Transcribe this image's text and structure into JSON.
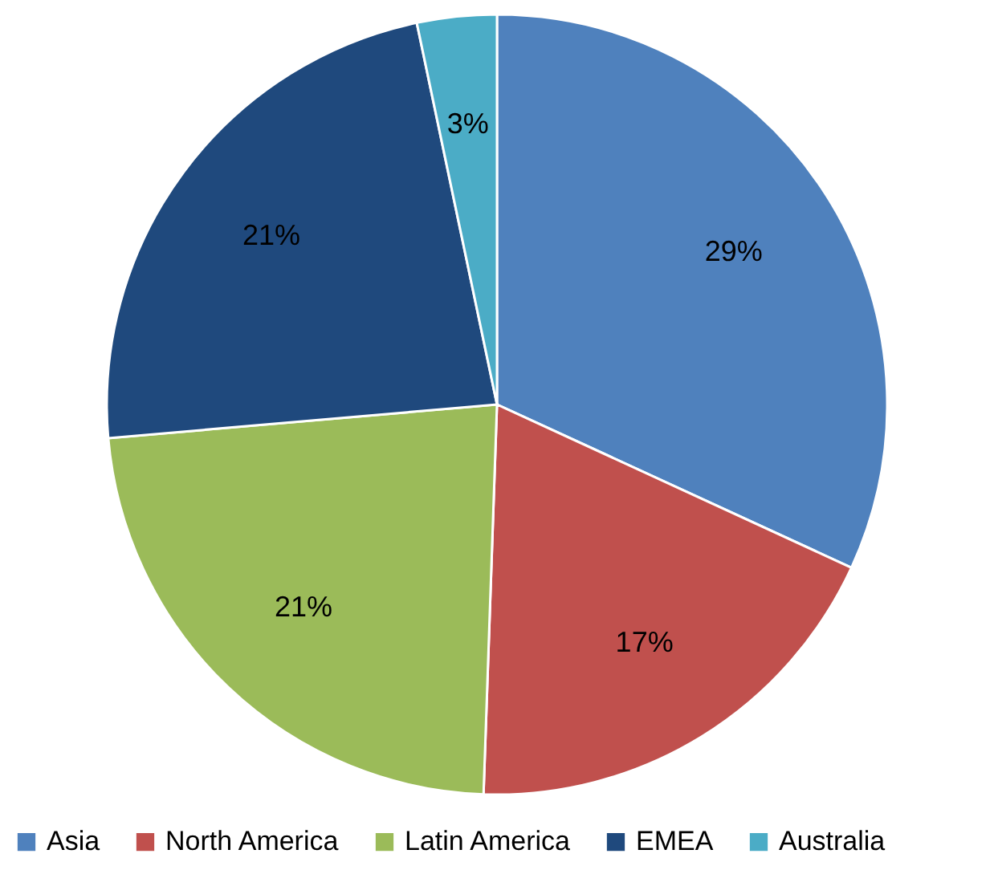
{
  "chart_data": {
    "type": "pie",
    "categories": [
      "Asia",
      "North America",
      "Latin America",
      "EMEA",
      "Australia"
    ],
    "values": [
      29,
      17,
      21,
      21,
      3
    ],
    "colors": [
      "#4f81bd",
      "#c0504d",
      "#9bbb59",
      "#1f497d",
      "#4bacc6"
    ],
    "value_labels": [
      "29%",
      "17%",
      "21%",
      "21%",
      "3%"
    ],
    "legend": "bottom"
  }
}
